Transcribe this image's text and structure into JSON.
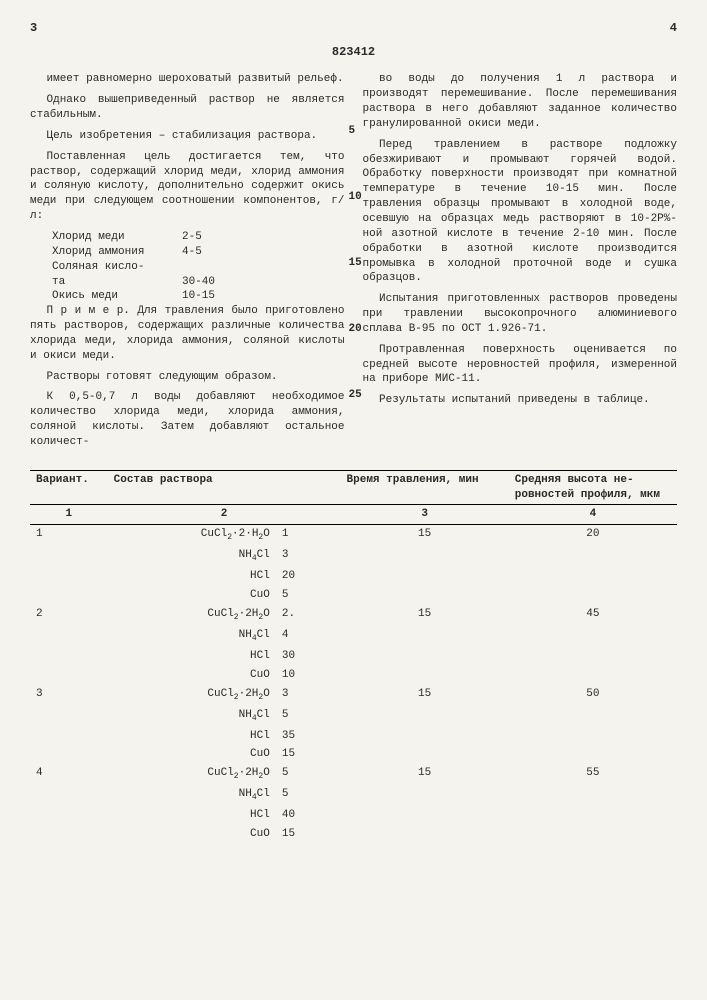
{
  "header": {
    "left_page": "3",
    "right_page": "4",
    "doc_number": "823412"
  },
  "left_col": {
    "p1": "имеет равномерно шероховатый развитый рельеф.",
    "p2": "Однако вышеприведенный раствор не является стабильным.",
    "p3": "Цель изобретения – стабилизация раствора.",
    "p4": "Поставленная цель достигается тем, что раствор, содержащий хлорид меди, хлорид аммония и соляную кислоту, дополнительно содержит окись меди при следующем соотношении компонентов, г/л:",
    "components": [
      {
        "name": "Хлорид меди",
        "val": "2-5"
      },
      {
        "name": "Хлорид аммония",
        "val": "4-5"
      },
      {
        "name": "Соляная кисло-",
        "val": ""
      },
      {
        "name": "та",
        "val": "30-40"
      },
      {
        "name": "Окись меди",
        "val": "10-15"
      }
    ],
    "p5": "П р и м е р. Для травления было приготовлено пять растворов, содержащих различные количества хлорида меди, хлорида аммония, соляной кислоты и окиси меди.",
    "p6": "Растворы готовят следующим образом.",
    "p7": "К 0,5-0,7 л воды добавляют необходимое количество хлорида меди, хлорида аммония, соляной кислоты. Затем добавляют остальное количест-"
  },
  "right_col": {
    "p1": "во воды до получения 1 л раствора и производят перемешивание. После перемешивания раствора в него добавляют заданное количество гранулированной окиси меди.",
    "p2": "Перед травлением в растворе подложку обезжиривают и промывают горячей водой. Обработку поверхности производят при комнатной температуре в течение 10-15 мин. После травления образцы промывают в холодной воде, осевшую на образцах медь растворяют в 10-2Р%-ной азотной кислоте в течение 2-10 мин. После обработки в азотной кислоте производится промывка в холодной проточной воде и сушка образцов.",
    "p3": "Испытания приготовленных растворов проведены при травлении высокопрочного алюминиевого сплава В-95 по ОСТ 1.926-71.",
    "p4": "Протравленная поверхность оценивается по средней высоте неровностей профиля, измеренной на приборе МИС-11.",
    "p5": "Результаты испытаний приведены в таблице."
  },
  "line_nums": [
    "5",
    "10",
    "15",
    "20",
    "25"
  ],
  "table": {
    "headers": [
      "Вариант.",
      "Состав раствора",
      "",
      "Время травления, мин",
      "Сред­няя вы­сота не­ровнос­тей про­филя, мкм"
    ],
    "col_nums": [
      "1",
      "2",
      "",
      "3",
      "4"
    ],
    "rows": [
      {
        "v": "1",
        "f": "CuCl2·2·H2O",
        "amt": "1",
        "t": "15",
        "h": "20"
      },
      {
        "v": "",
        "f": "NH4Cl",
        "amt": "3",
        "t": "",
        "h": ""
      },
      {
        "v": "",
        "f": "HCl",
        "amt": "20",
        "t": "",
        "h": ""
      },
      {
        "v": "",
        "f": "CuO",
        "amt": "5",
        "t": "",
        "h": ""
      },
      {
        "v": "2",
        "f": "CuCl2·2H2O",
        "amt": "2.",
        "t": "15",
        "h": "45"
      },
      {
        "v": "",
        "f": "NH4Cl",
        "amt": "4",
        "t": "",
        "h": ""
      },
      {
        "v": "",
        "f": "HCl",
        "amt": "30",
        "t": "",
        "h": ""
      },
      {
        "v": "",
        "f": "CuO",
        "amt": "10",
        "t": "",
        "h": ""
      },
      {
        "v": "3",
        "f": "CuCl2·2H2O",
        "amt": "3",
        "t": "15",
        "h": "50"
      },
      {
        "v": "",
        "f": "NH4Cl",
        "amt": "5",
        "t": "",
        "h": ""
      },
      {
        "v": "",
        "f": "HCl",
        "amt": "35",
        "t": "",
        "h": ""
      },
      {
        "v": "",
        "f": "CuO",
        "amt": "15",
        "t": "",
        "h": ""
      },
      {
        "v": "4",
        "f": "CuCl2·2H2O",
        "amt": "5",
        "t": "15",
        "h": "55"
      },
      {
        "v": "",
        "f": "NH4Cl",
        "amt": "5",
        "t": "",
        "h": ""
      },
      {
        "v": "",
        "f": "HCl",
        "amt": "40",
        "t": "",
        "h": ""
      },
      {
        "v": "",
        "f": "CuO",
        "amt": "15",
        "t": "",
        "h": ""
      }
    ]
  }
}
